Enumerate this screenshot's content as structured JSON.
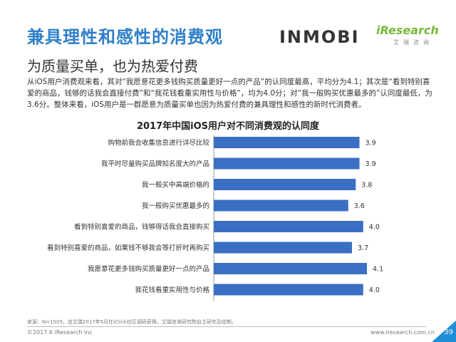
{
  "header": {
    "title": "兼具理性和感性的消费观",
    "subtitle": "为质量买单，也为热爱付费",
    "logo_left": "INMOBI",
    "logo_right": "iResearch",
    "logo_right_cn": "艾瑞咨询"
  },
  "description": "从iOS用户消费观来看，其对“我愿意花更多钱购买质量更好一点的产品”的认同度最高，平均分为4.1；其次是“看到特别喜爱的商品，钱够的话我会直接付费”和“我花钱看重实用性与价格”，均为4.0分；对“我一般购买优惠最多的”认同度最低，为3.6分。整体来看，iOS用户是一群愿意为质量买单也因为热爱付费的兼具理性和感性的新时代消费者。",
  "chart_data": {
    "type": "bar",
    "orientation": "horizontal",
    "title": "2017年中国iOS用户对不同消费观的认同度",
    "categories": [
      "购物前我会收集信息进行详尽比较",
      "我平时尽量购买品牌知名度大的产品",
      "我一般买中高端价格的",
      "我一般购买优惠最多的",
      "看到特别喜爱的商品，钱够得话我会直接购买",
      "看到特别喜爱的商品，如果钱不够我会等打折时再购买",
      "我愿意花更多钱购买质量更好一点的产品",
      "我花钱看重实用性与价格"
    ],
    "values": [
      3.9,
      3.9,
      3.8,
      3.6,
      4.0,
      3.7,
      4.1,
      4.0
    ],
    "bar_color": "#3b6fc4",
    "grid": false,
    "legend": "none"
  },
  "footer": {
    "source": "来源：N=1505，由艾瑞2017年5月在iClick社区调研获得。艾瑞咨询研究院自主研究及绘制。",
    "copyright": "©2017.6 iResearch Inc",
    "site": "www.iresearch.com.cn",
    "page": "39"
  }
}
